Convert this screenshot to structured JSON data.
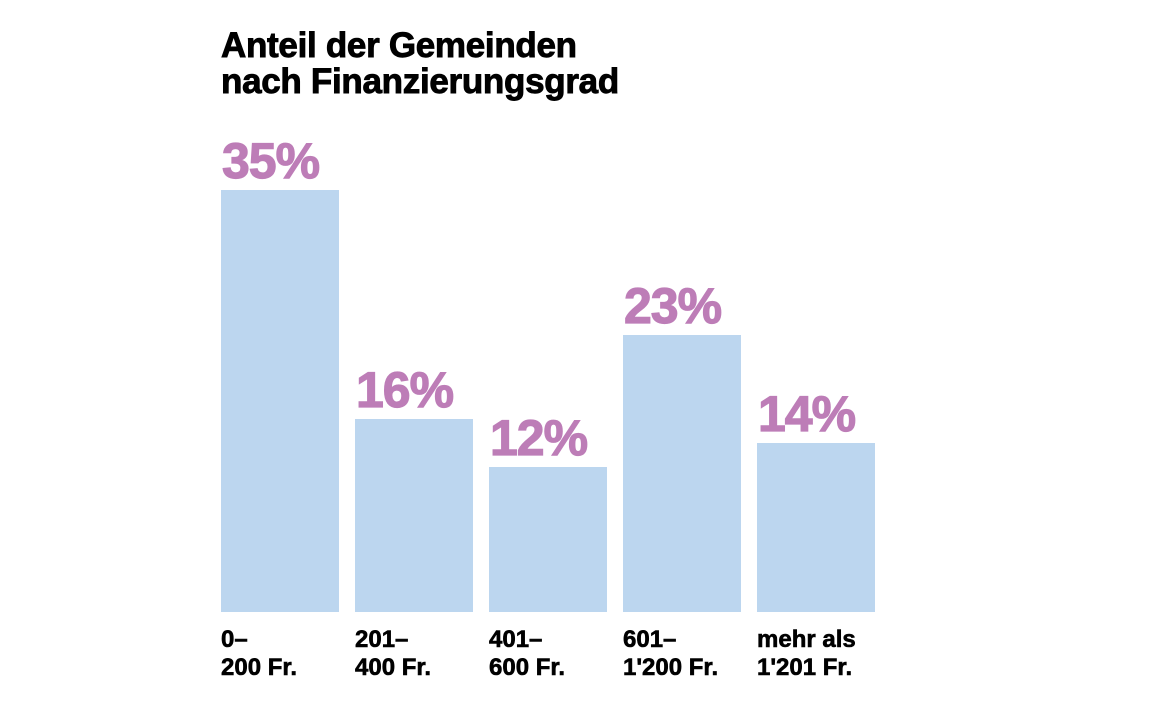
{
  "title": {
    "line1": "Anteil der Gemeinden",
    "line2": "nach Finanzierungsgrad"
  },
  "colors": {
    "bar": "#bcd6ef",
    "value_label": "#bd7db7",
    "text": "#000000",
    "background": "#ffffff"
  },
  "bars": [
    {
      "value": 35,
      "label": "35%",
      "cat_line1": "0–",
      "cat_line2": "200 Fr."
    },
    {
      "value": 16,
      "label": "16%",
      "cat_line1": "201–",
      "cat_line2": "400 Fr."
    },
    {
      "value": 12,
      "label": "12%",
      "cat_line1": "401–",
      "cat_line2": "600 Fr."
    },
    {
      "value": 23,
      "label": "23%",
      "cat_line1": "601–",
      "cat_line2": "1'200 Fr."
    },
    {
      "value": 14,
      "label": "14%",
      "cat_line1": "mehr als",
      "cat_line2": "1'201 Fr."
    }
  ],
  "chart_data": {
    "type": "bar",
    "title": "Anteil der Gemeinden nach Finanzierungsgrad",
    "categories": [
      "0–200 Fr.",
      "201–400 Fr.",
      "401–600 Fr.",
      "601–1'200 Fr.",
      "mehr als 1'201 Fr."
    ],
    "values": [
      35,
      16,
      12,
      23,
      14
    ],
    "value_labels": [
      "35%",
      "16%",
      "12%",
      "23%",
      "14%"
    ],
    "xlabel": "",
    "ylabel": "",
    "unit": "%",
    "ylim": [
      0,
      35
    ],
    "grid": false,
    "legend": null
  }
}
